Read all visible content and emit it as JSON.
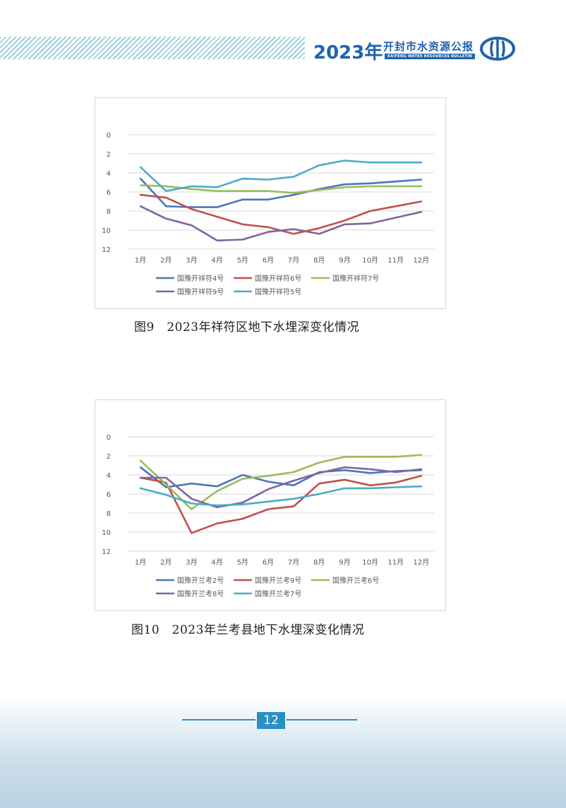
{
  "header": {
    "year": "2023年",
    "title": "开封市水资源公报",
    "subtitle": "KAIFENG WATER RESOURCES BULLETIN"
  },
  "captions": {
    "fig9": "图9　2023年祥符区地下水埋深变化情况",
    "fig10": "图10　2023年兰考县地下水埋深变化情况"
  },
  "page_number": "12",
  "chart_data": [
    {
      "type": "line",
      "title": "",
      "xlabel": "",
      "ylabel": "",
      "categories": [
        "1月",
        "2月",
        "3月",
        "4月",
        "5月",
        "6月",
        "7月",
        "8月",
        "9月",
        "10月",
        "11月",
        "12月"
      ],
      "yticks": [
        "0",
        "2",
        "4",
        "6",
        "8",
        "10",
        "12"
      ],
      "ylim": [
        0,
        12
      ],
      "y_inverted": true,
      "grid": true,
      "legend_position": "bottom",
      "series": [
        {
          "name": "国豫开祥符4号",
          "color": "#4a76b8",
          "values": [
            4.6,
            7.5,
            7.6,
            7.6,
            6.8,
            6.8,
            6.3,
            5.7,
            5.2,
            5.1,
            4.9,
            4.7
          ]
        },
        {
          "name": "国豫开祥符6号",
          "color": "#c0504d",
          "values": [
            6.3,
            6.6,
            7.8,
            8.6,
            9.4,
            9.7,
            10.4,
            9.8,
            9.0,
            8.0,
            7.5,
            7.0
          ]
        },
        {
          "name": "国豫开祥符7号",
          "color": "#9bbb59",
          "values": [
            5.3,
            5.4,
            5.7,
            5.9,
            5.9,
            5.9,
            6.1,
            5.8,
            5.5,
            5.4,
            5.4,
            5.4
          ]
        },
        {
          "name": "国豫开祥符9号",
          "color": "#8064a2",
          "values": [
            7.5,
            8.8,
            9.5,
            11.1,
            11.0,
            10.2,
            9.9,
            10.4,
            9.4,
            9.3,
            8.7,
            8.1
          ]
        },
        {
          "name": "国豫开祥符5号",
          "color": "#4bacc6",
          "values": [
            3.4,
            5.9,
            5.4,
            5.5,
            4.6,
            4.7,
            4.4,
            3.2,
            2.7,
            2.9,
            2.9,
            2.9
          ]
        }
      ]
    },
    {
      "type": "line",
      "title": "",
      "xlabel": "",
      "ylabel": "",
      "categories": [
        "1月",
        "2月",
        "3月",
        "4月",
        "5月",
        "6月",
        "7月",
        "8月",
        "9月",
        "10月",
        "11月",
        "12月"
      ],
      "yticks": [
        "0",
        "2",
        "4",
        "6",
        "8",
        "10",
        "12"
      ],
      "ylim": [
        0,
        12
      ],
      "y_inverted": true,
      "grid": true,
      "legend_position": "bottom",
      "series": [
        {
          "name": "国豫开兰考2号",
          "color": "#4a76b8",
          "values": [
            3.2,
            5.3,
            4.9,
            5.2,
            4.0,
            4.7,
            5.1,
            3.7,
            3.5,
            3.8,
            3.6,
            3.5
          ]
        },
        {
          "name": "国豫开兰考9号",
          "color": "#c0504d",
          "values": [
            4.3,
            4.8,
            10.1,
            9.1,
            8.6,
            7.6,
            7.3,
            4.9,
            4.5,
            5.1,
            4.8,
            4.1
          ]
        },
        {
          "name": "国豫开兰考6号",
          "color": "#9bbb59",
          "values": [
            2.5,
            5.0,
            7.6,
            5.7,
            4.4,
            4.1,
            3.7,
            2.7,
            2.1,
            2.1,
            2.1,
            1.9
          ]
        },
        {
          "name": "国豫开兰考8号",
          "color": "#8064a2",
          "values": [
            4.3,
            4.3,
            6.5,
            7.4,
            6.9,
            5.5,
            4.6,
            3.8,
            3.2,
            3.4,
            3.7,
            3.4
          ]
        },
        {
          "name": "国豫开兰考7号",
          "color": "#4bacc6",
          "values": [
            5.4,
            6.1,
            7.0,
            7.2,
            7.1,
            6.8,
            6.5,
            6.0,
            5.4,
            5.4,
            5.3,
            5.2
          ]
        }
      ]
    }
  ]
}
